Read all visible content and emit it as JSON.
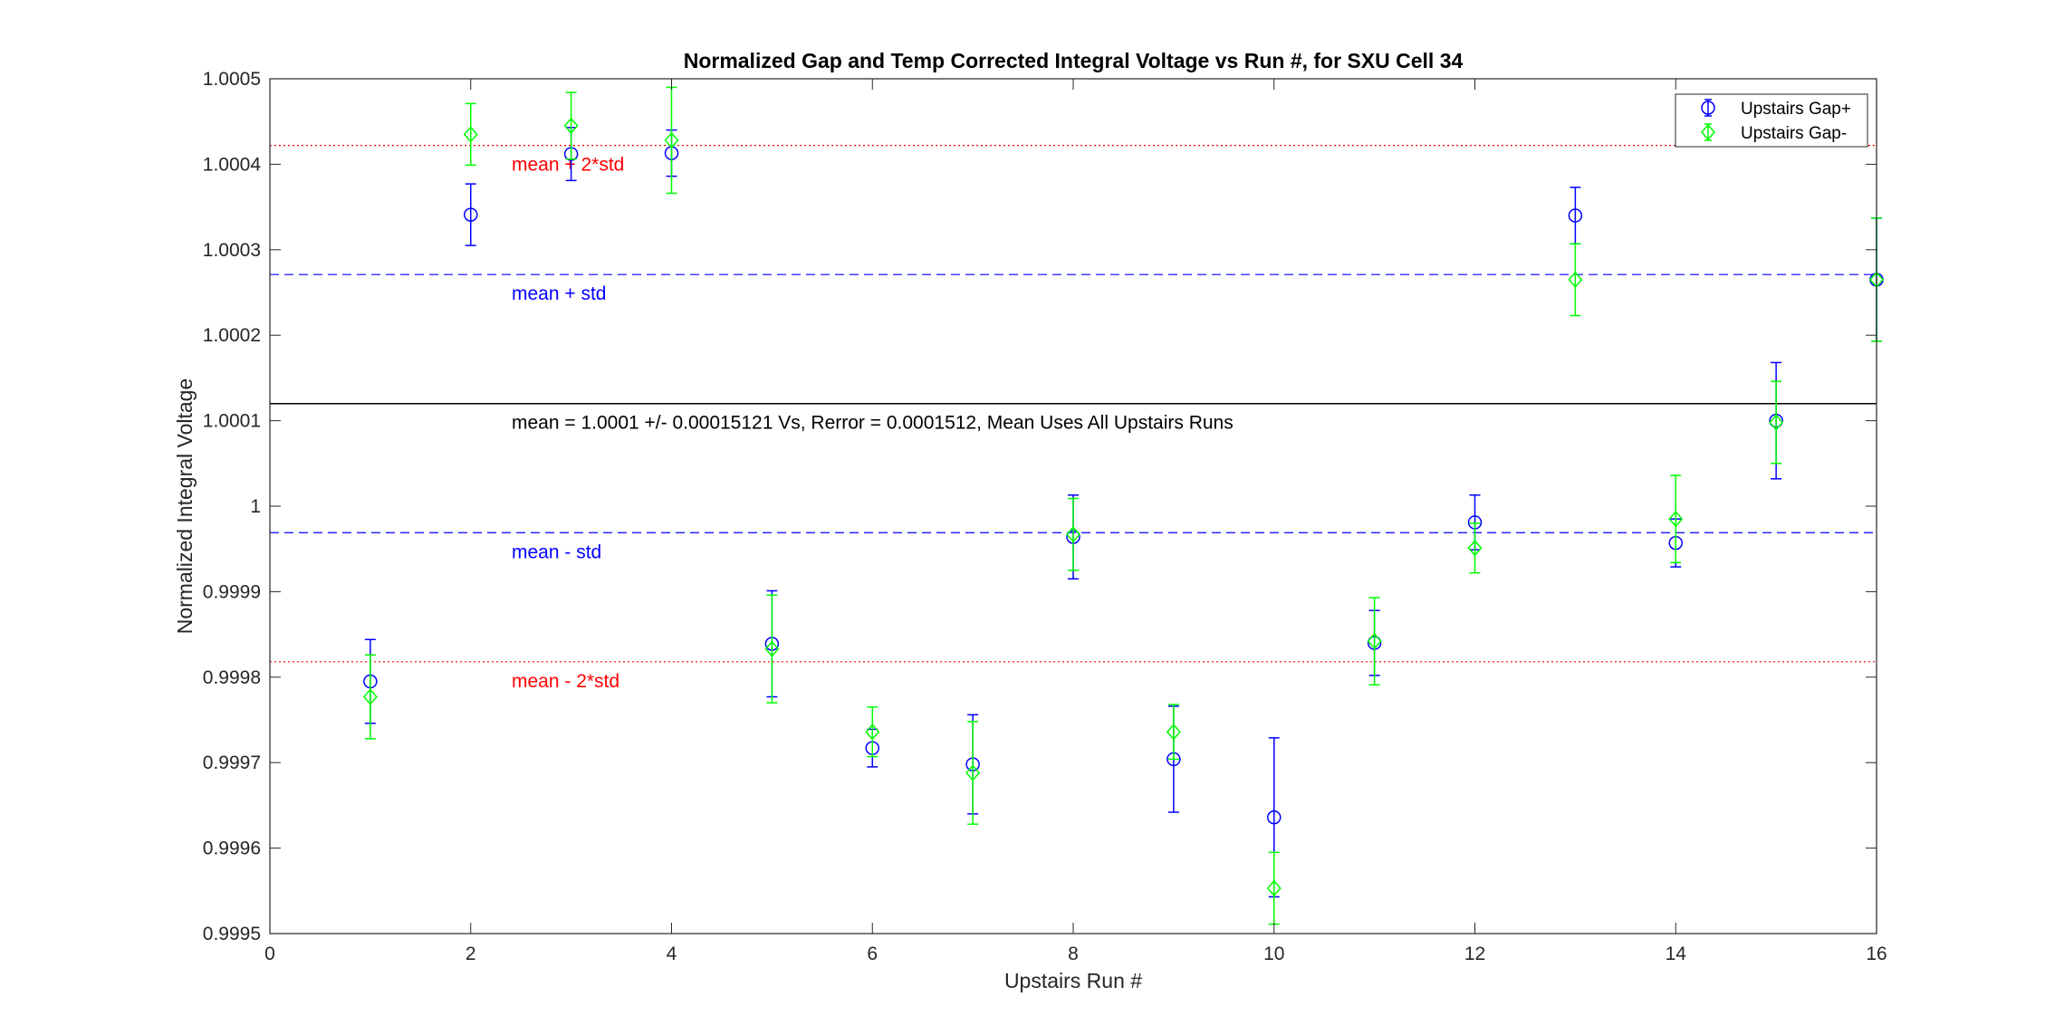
{
  "chart_data": {
    "type": "scatter",
    "title": "Normalized Gap and Temp Corrected Integral Voltage vs Run #, for SXU Cell 34",
    "xlabel": "Upstairs Run #",
    "ylabel": "Normalized Integral Voltage",
    "xlim": [
      0,
      16
    ],
    "ylim": [
      0.9995,
      1.0005
    ],
    "xticks": [
      0,
      2,
      4,
      6,
      8,
      10,
      12,
      14,
      16
    ],
    "yticks": [
      0.9995,
      0.9996,
      0.9997,
      0.9998,
      0.9999,
      1.0,
      1.0001,
      1.0002,
      1.0003,
      1.0004,
      1.0005
    ],
    "ytick_labels": [
      "0.9995",
      "0.9996",
      "0.9997",
      "0.9998",
      "0.9999",
      "1",
      "1.0001",
      "1.0002",
      "1.0003",
      "1.0004",
      "1.0005"
    ],
    "legend_position": "top-right",
    "grid": false,
    "series": [
      {
        "name": "Upstairs Gap+",
        "color": "#0000ff",
        "marker": "circle",
        "x": [
          1,
          2,
          3,
          4,
          5,
          6,
          7,
          8,
          9,
          10,
          11,
          12,
          13,
          14,
          15,
          16
        ],
        "y": [
          0.999795,
          1.000341,
          1.000412,
          1.000413,
          0.999839,
          0.999717,
          0.999698,
          0.999964,
          0.999704,
          0.999636,
          0.99984,
          0.999981,
          1.00034,
          0.999957,
          1.0001,
          1.000265
        ],
        "err": [
          4.9e-05,
          3.6e-05,
          3.1e-05,
          2.7e-05,
          6.2e-05,
          2.2e-05,
          5.8e-05,
          4.9e-05,
          6.2e-05,
          9.3e-05,
          3.8e-05,
          3.2e-05,
          3.3e-05,
          2.8e-05,
          6.8e-05,
          7.2e-05
        ]
      },
      {
        "name": "Upstairs Gap-",
        "color": "#00ff00",
        "marker": "diamond",
        "x": [
          1,
          2,
          3,
          4,
          5,
          6,
          7,
          8,
          9,
          10,
          11,
          12,
          13,
          14,
          15,
          16
        ],
        "y": [
          0.999777,
          1.000435,
          1.000445,
          1.000428,
          0.999833,
          0.999736,
          0.999688,
          0.999967,
          0.999736,
          0.999553,
          0.999842,
          0.999951,
          1.000265,
          0.999985,
          1.000098,
          1.000265
        ],
        "err": [
          4.9e-05,
          3.6e-05,
          3.9e-05,
          6.2e-05,
          6.3e-05,
          2.9e-05,
          6e-05,
          4.2e-05,
          3.2e-05,
          4.2e-05,
          5.1e-05,
          2.9e-05,
          4.2e-05,
          5.1e-05,
          4.8e-05,
          7.2e-05
        ]
      }
    ],
    "reference_lines": [
      {
        "label": "mean + 2*std",
        "y": 1.000422,
        "color": "#ff0000",
        "style": "dotted"
      },
      {
        "label": "mean + std",
        "y": 1.000271,
        "color": "#0000ff",
        "style": "dashed"
      },
      {
        "label": "mean = 1.0001 +/- 0.00015121 Vs, Rerror = 0.0001512, Mean Uses All Upstairs Runs",
        "y": 1.00012,
        "color": "#000000",
        "style": "solid"
      },
      {
        "label": "mean - std",
        "y": 0.999969,
        "color": "#0000ff",
        "style": "dashed"
      },
      {
        "label": "mean - 2*std",
        "y": 0.999818,
        "color": "#ff0000",
        "style": "dotted"
      }
    ]
  }
}
